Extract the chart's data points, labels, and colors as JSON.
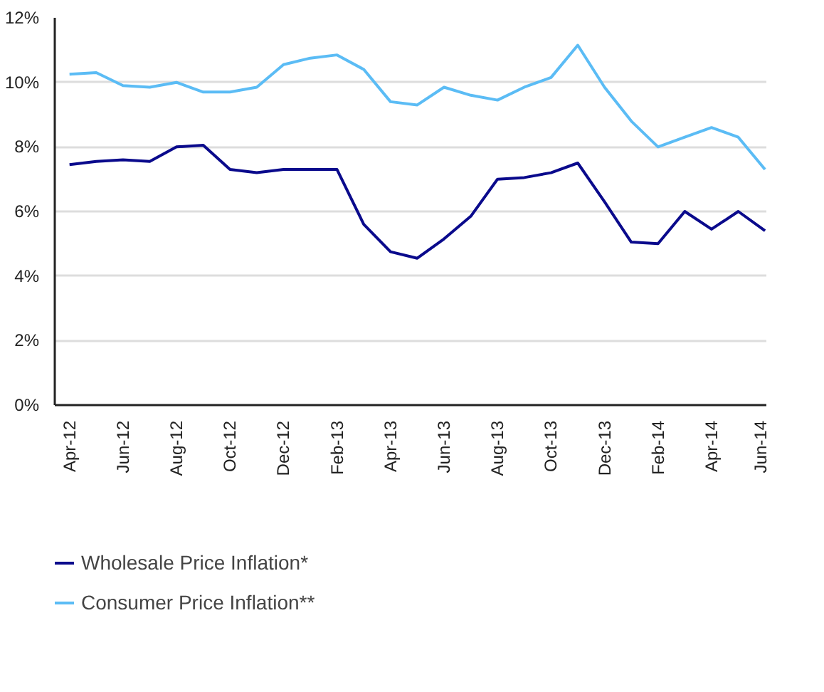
{
  "chart_data": {
    "type": "line",
    "categories": [
      "Apr-12",
      null,
      "Jun-12",
      null,
      "Aug-12",
      null,
      "Oct-12",
      null,
      "Dec-12",
      null,
      "Feb-13",
      null,
      "Apr-13",
      null,
      "Jun-13",
      null,
      "Aug-13",
      null,
      "Oct-13",
      null,
      "Dec-13",
      null,
      "Feb-14",
      null,
      "Apr-14",
      null,
      "Jun-14"
    ],
    "series": [
      {
        "name": "Wholesale Price Inflation*",
        "color": "#0a0a8c",
        "values": [
          7.45,
          7.55,
          7.6,
          7.55,
          8.0,
          8.05,
          7.3,
          7.2,
          7.3,
          7.3,
          7.3,
          5.6,
          4.75,
          4.55,
          5.15,
          5.85,
          7.0,
          7.05,
          7.2,
          7.5,
          6.3,
          5.05,
          5.0,
          6.0,
          5.45,
          6.0,
          5.4
        ]
      },
      {
        "name": "Consumer Price Inflation**",
        "color": "#5bbcf5",
        "values": [
          10.25,
          10.3,
          9.9,
          9.85,
          10.0,
          9.7,
          9.7,
          9.85,
          10.55,
          10.75,
          10.85,
          10.4,
          9.4,
          9.3,
          9.85,
          9.6,
          9.45,
          9.85,
          10.15,
          11.15,
          9.85,
          8.8,
          8.0,
          8.3,
          8.6,
          8.3,
          7.3
        ]
      }
    ],
    "ylim": [
      0,
      12
    ],
    "yticks": [
      {
        "value": 0,
        "label": "0%"
      },
      {
        "value": 2,
        "label": "2%"
      },
      {
        "value": 4,
        "label": "4%"
      },
      {
        "value": 6,
        "label": "6%"
      },
      {
        "value": 8,
        "label": "8%"
      },
      {
        "value": 10,
        "label": "10%"
      },
      {
        "value": 12,
        "label": "12%"
      }
    ],
    "grid": "y",
    "legend": "bottom",
    "marker": "none",
    "line_style": "solid"
  }
}
